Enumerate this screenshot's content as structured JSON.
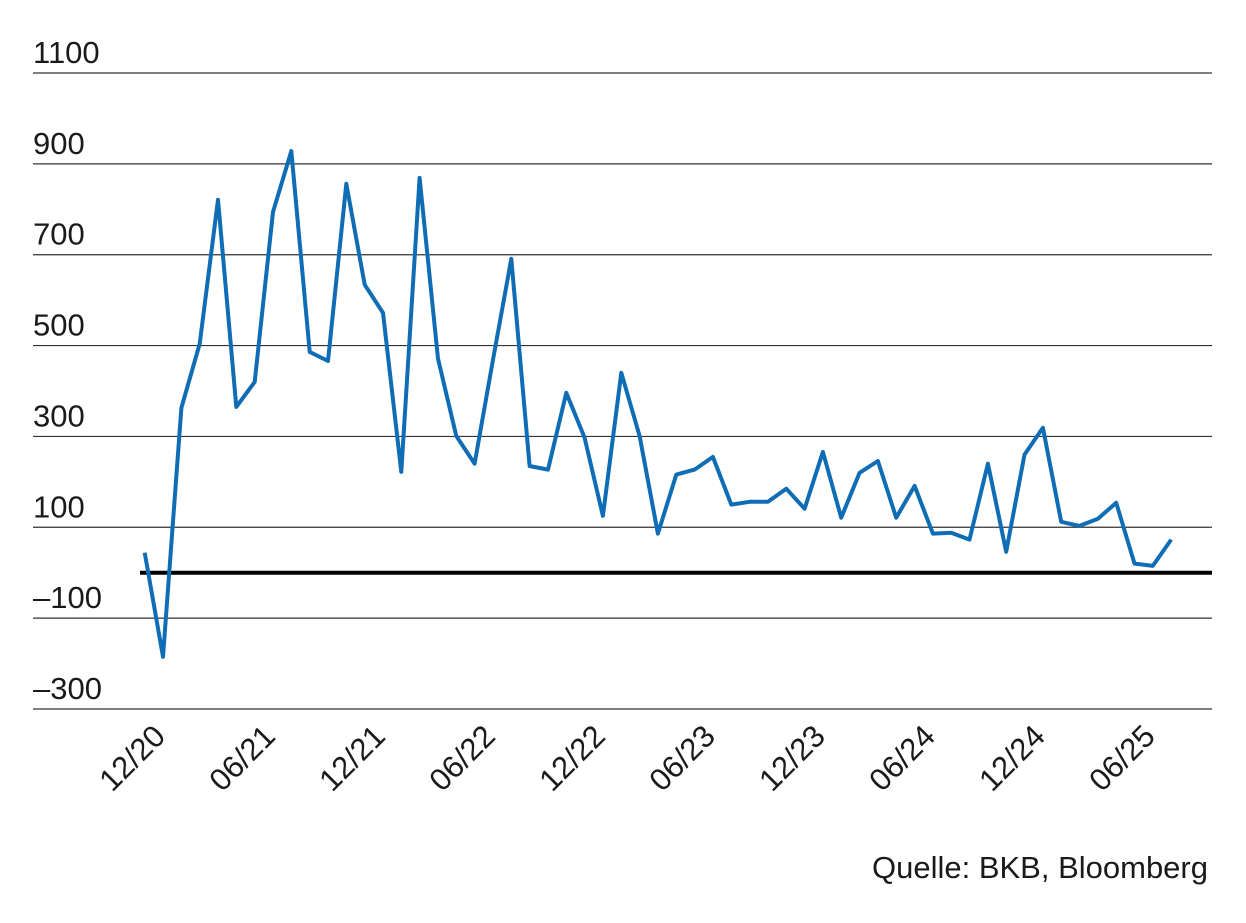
{
  "chart_data": {
    "type": "line",
    "source": "Quelle: BKB, Bloomberg",
    "categories": [
      null,
      "12/20",
      null,
      null,
      null,
      null,
      null,
      "06/21",
      null,
      null,
      null,
      null,
      null,
      "12/21",
      null,
      null,
      null,
      null,
      null,
      "06/22",
      null,
      null,
      null,
      null,
      null,
      "12/22",
      null,
      null,
      null,
      null,
      null,
      "06/23",
      null,
      null,
      null,
      null,
      null,
      "12/23",
      null,
      null,
      null,
      null,
      null,
      "06/24",
      null,
      null,
      null,
      null,
      null,
      "12/24",
      null,
      null,
      null,
      null,
      null,
      "06/25",
      null
    ],
    "series": [
      {
        "color": "#0f6db5",
        "values": [
          44,
          -185,
          363,
          504,
          821,
          365,
          420,
          794,
          928,
          486,
          466,
          856,
          634,
          572,
          222,
          869,
          471,
          301,
          240,
          469,
          691,
          235,
          227,
          396,
          297,
          125,
          440,
          301,
          86,
          216,
          227,
          255,
          150,
          156,
          156,
          185,
          141,
          266,
          121,
          220,
          246,
          121,
          191,
          86,
          88,
          73,
          240,
          46,
          260,
          319,
          112,
          103,
          119,
          154,
          20,
          15,
          73
        ]
      }
    ],
    "ylim": [
      -300,
      1100
    ],
    "yticks": [
      {
        "value": -300,
        "label": "–300"
      },
      {
        "value": -100,
        "label": "–100"
      },
      100,
      300,
      500,
      700,
      900,
      1100
    ],
    "grid": true
  }
}
